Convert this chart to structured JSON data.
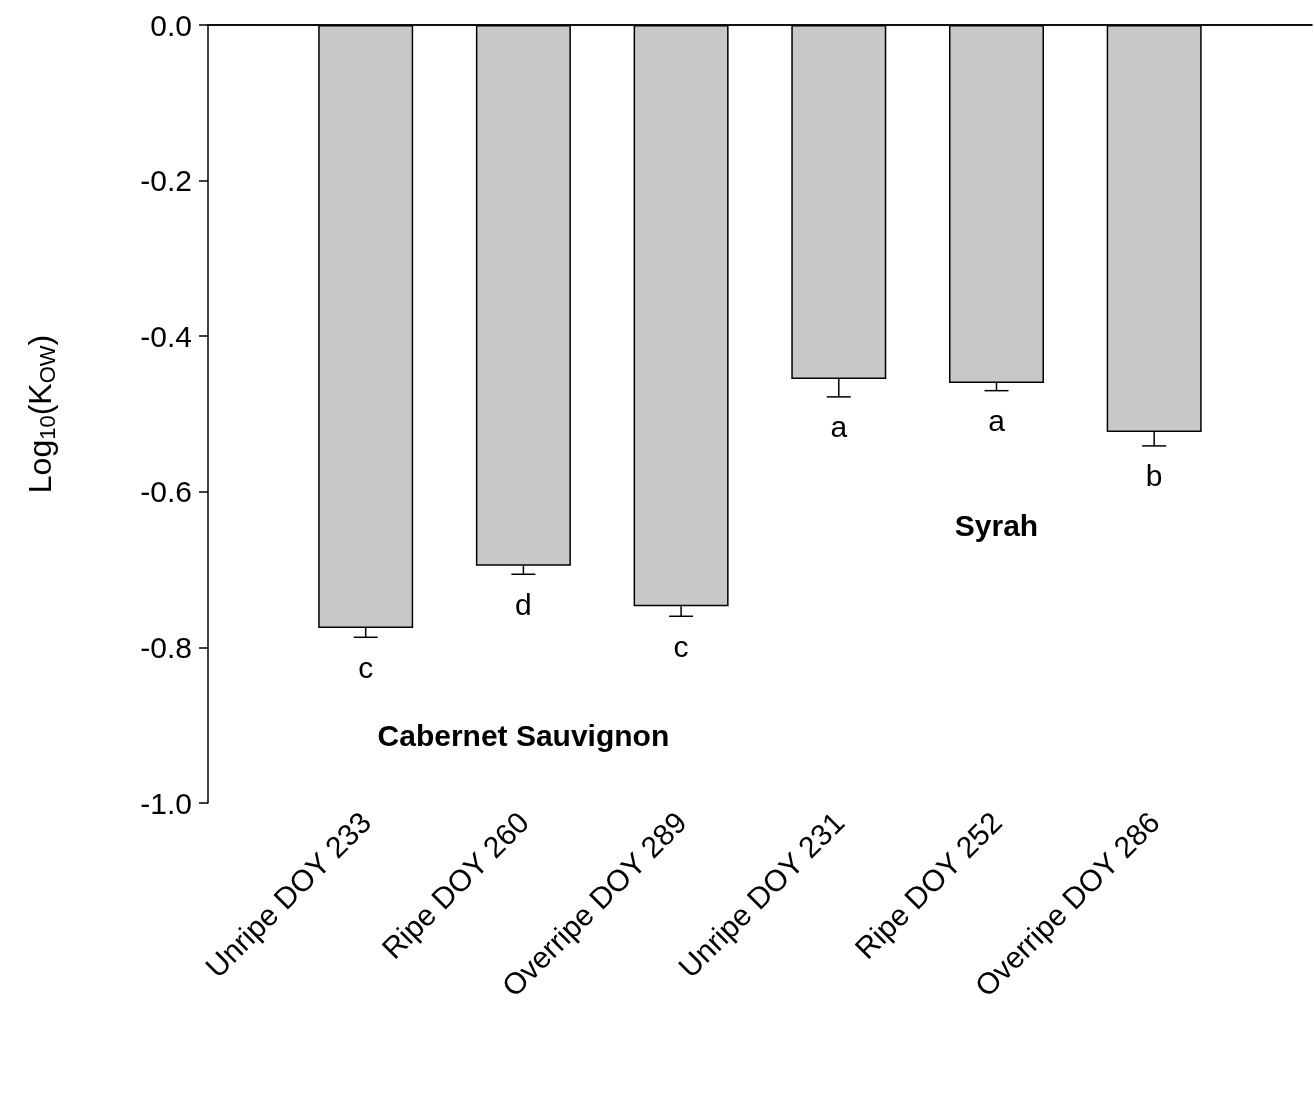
{
  "chart_data": {
    "type": "bar",
    "ylabel": "Log$_{10}$(K$_{OW}$)",
    "categories": [
      "Unripe DOY 233",
      "Ripe DOY 260",
      "Overripe DOY 289",
      "Unripe DOY 231",
      "Ripe DOY 252",
      "Overripe DOY 286"
    ],
    "values": [
      -0.775,
      -0.695,
      -0.747,
      -0.455,
      -0.46,
      -0.523
    ],
    "errors": [
      [
        -0.787,
        -0.775
      ],
      [
        -0.706,
        -0.695
      ],
      [
        -0.76,
        -0.747
      ],
      [
        -0.478,
        -0.455
      ],
      [
        -0.47,
        -0.46
      ],
      [
        -0.541,
        -0.523
      ]
    ],
    "color": "#c8c8c8",
    "ylim": [
      -1.0,
      0.0
    ],
    "yticks": [
      {
        "value": -1.0,
        "label": "-1.0"
      },
      {
        "value": -0.8,
        "label": "-0.8"
      },
      {
        "value": -0.6,
        "label": "-0.6"
      },
      {
        "value": -0.4,
        "label": "-0.4"
      },
      {
        "value": -0.2,
        "label": "-0.2"
      },
      {
        "value": 0.0,
        "label": "0.0"
      }
    ],
    "grid": false,
    "annotations": [
      "c",
      "d",
      "c",
      "a",
      "a",
      "b",
      "Cabernet Sauvignon",
      "Syrah"
    ]
  }
}
